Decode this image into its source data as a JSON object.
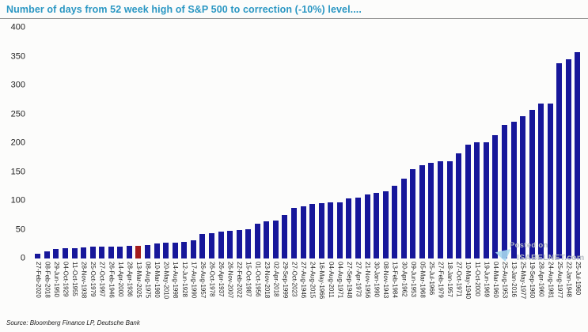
{
  "title": "Number of days from 52 week high of S&P 500 to correction (-10%) level....",
  "source": "Source: Bloomberg Finance LP, Deutsche Bank",
  "watermark": {
    "line1": "Posted on",
    "line2": "ISABELNET.com"
  },
  "colors": {
    "bar": "#17179a",
    "highlight_bar": "#a31c1c",
    "title_text": "#2b97c3",
    "axis_text": "#262626",
    "watermark_text": "#b7bdc5",
    "watermark_logo": "#a6d7ee"
  },
  "chart_data": {
    "type": "bar",
    "title": "Number of days from 52 week high of S&P 500 to correction (-10%) level....",
    "xlabel": "",
    "ylabel": "",
    "ylim": [
      0,
      400
    ],
    "yticks": [
      0,
      50,
      100,
      150,
      200,
      250,
      300,
      350,
      400
    ],
    "grid": false,
    "legend": null,
    "highlight_index": 11,
    "highlight_category": "13-Mar-2025",
    "categories": [
      "27-Feb-2020",
      "08-Feb-2018",
      "29-Jun-1950",
      "04-Oct-1929",
      "11-Oct-1955",
      "28-Nov-1938",
      "25-Oct-1979",
      "27-Oct-1997",
      "26-Feb-1946",
      "14-Apr-2000",
      "28-Apr-1936",
      "13-Mar-2025",
      "08-Aug-1975",
      "10-Mar-1980",
      "20-May-2010",
      "14-Aug-1998",
      "12-Jun-1928",
      "17-Aug-1990",
      "26-Aug-1957",
      "26-Oct-1978",
      "26-Apr-1937",
      "26-Nov-2007",
      "22-Feb-2022",
      "15-Oct-1987",
      "01-Oct-1956",
      "23-Nov-2018",
      "02-Apr-2018",
      "29-Sep-1999",
      "27-Oct-2023",
      "27-Aug-1946",
      "24-Aug-2015",
      "16-May-1966",
      "04-Aug-2011",
      "04-Aug-1971",
      "27-Sep-1948",
      "27-Apr-1973",
      "21-Nov-1956",
      "30-Jan-1990",
      "08-Nov-1943",
      "13-Feb-1984",
      "30-Apr-1962",
      "09-Jun-1953",
      "05-Mar-1968",
      "25-Jul-1966",
      "27-Feb-1979",
      "18-Jan-1957",
      "27-Oct-1971",
      "10-May-1940",
      "11-Oct-2000",
      "19-Jun-1969",
      "04-Mar-1960",
      "25-Aug-1953",
      "13-Jan-2016",
      "25-May-1977",
      "19-Sep-1960",
      "28-Apr-1960",
      "24-Aug-1981",
      "25-Aug-1977",
      "22-Jan-1948",
      "25-Jul-1960"
    ],
    "values": [
      8,
      13,
      17,
      18,
      18,
      19,
      20,
      20,
      21,
      21,
      22,
      22,
      24,
      26,
      27,
      28,
      29,
      32,
      42,
      44,
      47,
      48,
      50,
      51,
      60,
      64,
      66,
      75,
      88,
      90,
      95,
      96,
      97,
      98,
      104,
      106,
      111,
      114,
      117,
      126,
      139,
      155,
      162,
      166,
      168,
      169,
      182,
      198,
      201,
      202,
      214,
      232,
      237,
      246,
      258,
      269,
      269,
      338,
      345,
      357
    ]
  }
}
